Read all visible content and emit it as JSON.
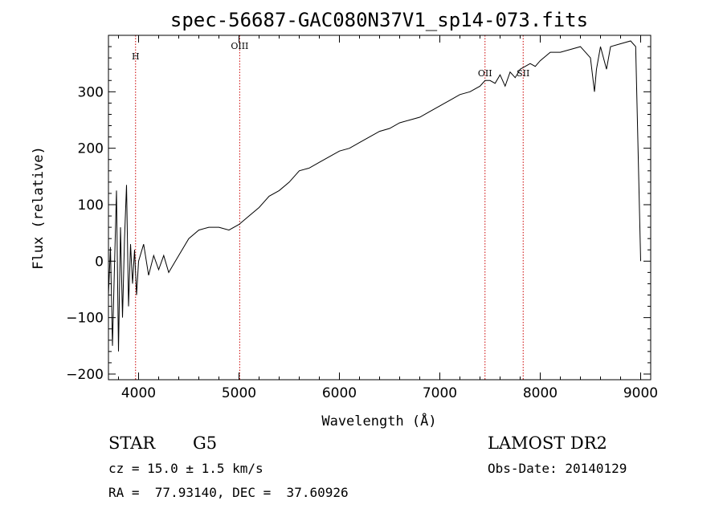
{
  "chart_data": {
    "type": "line",
    "title": "spec-56687-GAC080N37V1_sp14-073.fits",
    "xlabel": "Wavelength (Å)",
    "ylabel": "Flux (relative)",
    "xlim": [
      3700,
      9100
    ],
    "ylim": [
      -210,
      400
    ],
    "xticks": [
      4000,
      5000,
      6000,
      7000,
      8000,
      9000
    ],
    "yticks": [
      -200,
      -100,
      0,
      100,
      200,
      300
    ],
    "grid": false,
    "series": [
      {
        "x": [
          3700,
          3720,
          3740,
          3760,
          3780,
          3800,
          3820,
          3840,
          3860,
          3880,
          3900,
          3920,
          3940,
          3960,
          3980,
          4000,
          4050,
          4100,
          4150,
          4200,
          4250,
          4300,
          4400,
          4500,
          4600,
          4700,
          4800,
          4900,
          5000,
          5100,
          5200,
          5300,
          5400,
          5500,
          5600,
          5700,
          5800,
          5900,
          6000,
          6100,
          6200,
          6300,
          6400,
          6500,
          6600,
          6700,
          6800,
          6900,
          7000,
          7100,
          7200,
          7300,
          7400,
          7450,
          7500,
          7550,
          7600,
          7650,
          7700,
          7750,
          7800,
          7850,
          7900,
          7950,
          8000,
          8100,
          8200,
          8300,
          8400,
          8450,
          8500,
          8540,
          8560,
          8600,
          8660,
          8700,
          8800,
          8900,
          8950,
          9000
        ],
        "values": [
          -60,
          25,
          -150,
          -10,
          125,
          -160,
          60,
          -100,
          40,
          135,
          -80,
          30,
          -40,
          20,
          -60,
          0,
          30,
          -25,
          10,
          -15,
          10,
          -20,
          10,
          40,
          55,
          60,
          60,
          55,
          65,
          80,
          95,
          115,
          125,
          140,
          160,
          165,
          175,
          185,
          195,
          200,
          210,
          220,
          230,
          235,
          245,
          250,
          255,
          265,
          275,
          285,
          295,
          300,
          310,
          320,
          320,
          315,
          330,
          310,
          335,
          325,
          340,
          345,
          350,
          345,
          355,
          370,
          370,
          375,
          380,
          370,
          360,
          300,
          340,
          380,
          340,
          380,
          385,
          390,
          380,
          0
        ]
      }
    ],
    "reference_lines": [
      {
        "x": 3970,
        "label": "H"
      },
      {
        "x": 5007,
        "label": "OIII"
      },
      {
        "x": 7450,
        "label": "OII"
      },
      {
        "x": 7830,
        "label": "SII"
      }
    ]
  },
  "info": {
    "class": "STAR",
    "subclass": "G5",
    "survey": "LAMOST DR2",
    "cz": "cz = 15.0 ± 1.5 km/s",
    "obs_date": "Obs-Date: 20140129",
    "coords": "RA =  77.93140, DEC =  37.60926"
  },
  "colors": {
    "ink": "#000000",
    "line_marker": "#cc0000"
  }
}
